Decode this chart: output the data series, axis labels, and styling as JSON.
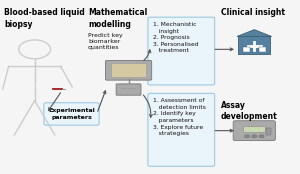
{
  "background_color": "#f5f5f5",
  "title_left": "Blood-based liquid\nbiopsy",
  "title_center": "Mathematical\nmodelling",
  "subtitle_center": "Predict key\nbiomarker\nquantities",
  "title_right_top": "Clinical insight",
  "title_right_bot": "Assay\ndevelopment",
  "box_top_text": "1. Mechanistic\n   insight\n2. Prognosis\n3. Personalised\n   treatment",
  "box_bot_text": "1. Assessment of\n   detection limits\n2. Identify key\n   parameters\n3. Explore future\n   strategies",
  "exp_params_text": "Experimental\nparameters",
  "box_color": "#eaf4fb",
  "box_edge_color": "#90c4dd",
  "arrow_color": "#555555",
  "text_color": "#111111",
  "bold_color": "#000000",
  "person_color": "#cccccc",
  "comp_body_color": "#aaaaaa",
  "comp_screen_color": "#d4c9a0",
  "hosp_color": "#5580a0",
  "device_color": "#aaaaaa"
}
